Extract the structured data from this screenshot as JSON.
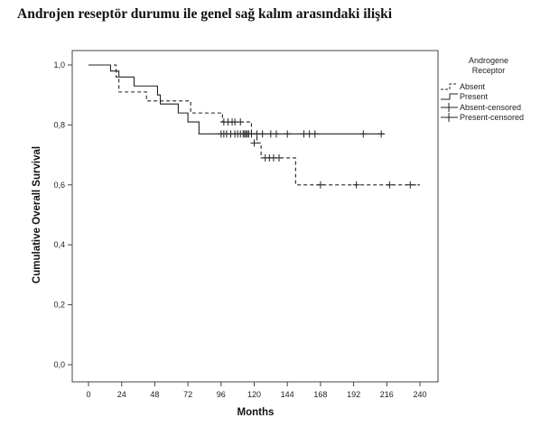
{
  "title": "Androjen reseptör durumu ile genel sağ kalım arasındaki ilişki",
  "chart_data": {
    "type": "line",
    "title": "",
    "xlabel": "Months",
    "ylabel": "Cumulative Overall Survival",
    "xlim": [
      0,
      240
    ],
    "ylim": [
      0,
      1
    ],
    "xticks": [
      "0",
      "24",
      "48",
      "72",
      "96",
      "120",
      "144",
      "168",
      "192",
      "216",
      "240"
    ],
    "yticks": [
      "0,0",
      "0,2",
      "0,4",
      "0,6",
      "0,8",
      "1,0"
    ],
    "grid": false,
    "legend": {
      "title_line1": "Androgene",
      "title_line2": "Receptor",
      "placement": "right",
      "entries": [
        "Absent",
        "Present",
        "Absent-censored",
        "Present-censored"
      ]
    },
    "series": [
      {
        "name": "Absent",
        "style": "dashed",
        "steps": [
          [
            0,
            1.0
          ],
          [
            20,
            0.96
          ],
          [
            22,
            0.91
          ],
          [
            42,
            0.88
          ],
          [
            74,
            0.84
          ],
          [
            97,
            0.81
          ],
          [
            118,
            0.77
          ],
          [
            122,
            0.74
          ],
          [
            125,
            0.69
          ],
          [
            150,
            0.6
          ],
          [
            240,
            0.6
          ]
        ],
        "end": 235,
        "censored": [
          [
            98,
            0.81
          ],
          [
            101,
            0.81
          ],
          [
            104,
            0.81
          ],
          [
            106,
            0.81
          ],
          [
            110,
            0.81
          ],
          [
            113,
            0.77
          ],
          [
            115,
            0.77
          ],
          [
            120,
            0.74
          ],
          [
            128,
            0.69
          ],
          [
            131,
            0.69
          ],
          [
            134,
            0.69
          ],
          [
            138,
            0.69
          ],
          [
            168,
            0.6
          ],
          [
            194,
            0.6
          ],
          [
            218,
            0.6
          ],
          [
            233,
            0.6
          ]
        ]
      },
      {
        "name": "Present",
        "style": "solid",
        "steps": [
          [
            0,
            1.0
          ],
          [
            16,
            0.98
          ],
          [
            22,
            0.96
          ],
          [
            33,
            0.93
          ],
          [
            50,
            0.9
          ],
          [
            52,
            0.87
          ],
          [
            65,
            0.84
          ],
          [
            72,
            0.81
          ],
          [
            80,
            0.77
          ]
        ],
        "end": 214,
        "censored": [
          [
            96,
            0.77
          ],
          [
            98,
            0.77
          ],
          [
            100,
            0.77
          ],
          [
            103,
            0.77
          ],
          [
            106,
            0.77
          ],
          [
            108,
            0.77
          ],
          [
            110,
            0.77
          ],
          [
            112,
            0.77
          ],
          [
            114,
            0.77
          ],
          [
            116,
            0.77
          ],
          [
            118,
            0.77
          ],
          [
            122,
            0.77
          ],
          [
            126,
            0.77
          ],
          [
            132,
            0.77
          ],
          [
            136,
            0.77
          ],
          [
            144,
            0.77
          ],
          [
            156,
            0.77
          ],
          [
            160,
            0.77
          ],
          [
            164,
            0.77
          ],
          [
            199,
            0.77
          ],
          [
            212,
            0.77
          ]
        ]
      }
    ]
  }
}
